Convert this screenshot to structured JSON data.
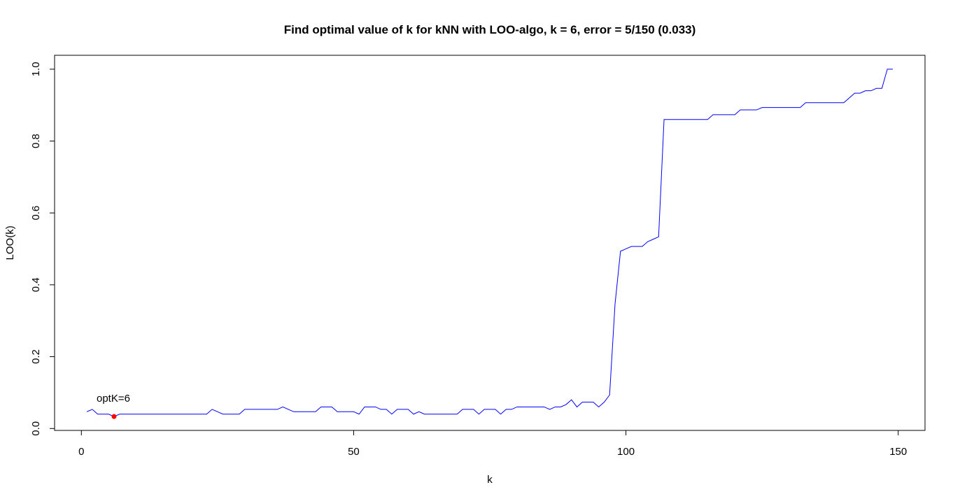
{
  "chart_data": {
    "type": "line",
    "title": "Find optimal value of k for kNN with LOO-algo, k = 6, error = 5/150 (0.033)",
    "x_label": "k",
    "y_label": "LOO(k)",
    "xlim": [
      -4.92,
      154.92
    ],
    "ylim": [
      -0.0053,
      1.0387
    ],
    "xticks": [
      0,
      50,
      100,
      150
    ],
    "yticks": [
      {
        "value": 0,
        "label": "0.0"
      },
      0.2,
      0.4,
      0.6,
      0.8,
      {
        "value": 1,
        "label": "1.0"
      }
    ],
    "color": "#0000ff",
    "x": [
      1,
      2,
      3,
      4,
      5,
      6,
      7,
      8,
      9,
      10,
      11,
      12,
      13,
      14,
      15,
      16,
      17,
      18,
      19,
      20,
      21,
      22,
      23,
      24,
      25,
      26,
      27,
      28,
      29,
      30,
      31,
      32,
      33,
      34,
      35,
      36,
      37,
      38,
      39,
      40,
      41,
      42,
      43,
      44,
      45,
      46,
      47,
      48,
      49,
      50,
      51,
      52,
      53,
      54,
      55,
      56,
      57,
      58,
      59,
      60,
      61,
      62,
      63,
      64,
      65,
      66,
      67,
      68,
      69,
      70,
      71,
      72,
      73,
      74,
      75,
      76,
      77,
      78,
      79,
      80,
      81,
      82,
      83,
      84,
      85,
      86,
      87,
      88,
      89,
      90,
      91,
      92,
      93,
      94,
      95,
      96,
      97,
      98,
      99,
      100,
      101,
      102,
      103,
      104,
      105,
      106,
      107,
      108,
      109,
      110,
      111,
      112,
      113,
      114,
      115,
      116,
      117,
      118,
      119,
      120,
      121,
      122,
      123,
      124,
      125,
      126,
      127,
      128,
      129,
      130,
      131,
      132,
      133,
      134,
      135,
      136,
      137,
      138,
      139,
      140,
      141,
      142,
      143,
      144,
      145,
      146,
      147,
      148,
      149
    ],
    "values": [
      0.0467,
      0.0533,
      0.04,
      0.04,
      0.04,
      0.0333,
      0.04,
      0.04,
      0.04,
      0.04,
      0.04,
      0.04,
      0.04,
      0.04,
      0.04,
      0.04,
      0.04,
      0.04,
      0.04,
      0.04,
      0.04,
      0.04,
      0.04,
      0.0533,
      0.0467,
      0.04,
      0.04,
      0.04,
      0.04,
      0.0533,
      0.0533,
      0.0533,
      0.0533,
      0.0533,
      0.0533,
      0.0533,
      0.06,
      0.0533,
      0.0467,
      0.0467,
      0.0467,
      0.0467,
      0.0467,
      0.06,
      0.06,
      0.06,
      0.0467,
      0.0467,
      0.0467,
      0.0467,
      0.04,
      0.06,
      0.06,
      0.06,
      0.0533,
      0.0533,
      0.04,
      0.0533,
      0.0533,
      0.0533,
      0.04,
      0.0467,
      0.04,
      0.04,
      0.04,
      0.04,
      0.04,
      0.04,
      0.04,
      0.0533,
      0.0533,
      0.0533,
      0.04,
      0.0533,
      0.0533,
      0.0533,
      0.04,
      0.0533,
      0.0533,
      0.06,
      0.06,
      0.06,
      0.06,
      0.06,
      0.06,
      0.0533,
      0.06,
      0.06,
      0.0667,
      0.08,
      0.06,
      0.0733,
      0.0733,
      0.0733,
      0.06,
      0.0733,
      0.0933,
      0.3467,
      0.4933,
      0.5,
      0.5067,
      0.5067,
      0.5067,
      0.52,
      0.5267,
      0.5333,
      0.86,
      0.86,
      0.86,
      0.86,
      0.86,
      0.86,
      0.86,
      0.86,
      0.86,
      0.8733,
      0.8733,
      0.8733,
      0.8733,
      0.8733,
      0.8867,
      0.8867,
      0.8867,
      0.8867,
      0.8933,
      0.8933,
      0.8933,
      0.8933,
      0.8933,
      0.8933,
      0.8933,
      0.8933,
      0.9067,
      0.9067,
      0.9067,
      0.9067,
      0.9067,
      0.9067,
      0.9067,
      0.9067,
      0.92,
      0.9333,
      0.9333,
      0.94,
      0.94,
      0.9467,
      0.9467,
      1,
      1
    ],
    "points": {
      "x": [
        6
      ],
      "values": [
        0.0333
      ],
      "color": "#ff0000"
    },
    "annotation": "optK=6"
  }
}
